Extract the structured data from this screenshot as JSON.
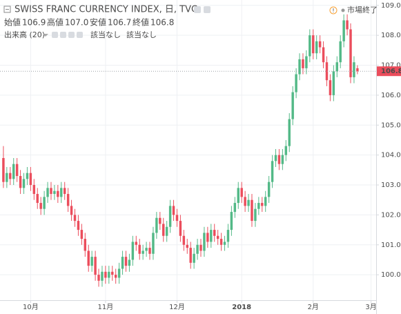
{
  "chart_data": {
    "type": "candlestick",
    "title": "SWISS FRANC CURRENCY INDEX, 日, TVC",
    "ohlc_legend": [
      {
        "label": "始値",
        "value": "106.9"
      },
      {
        "label": "高値",
        "value": "107.0"
      },
      {
        "label": "安値",
        "value": "106.7"
      },
      {
        "label": "終値",
        "value": "106.8"
      }
    ],
    "volume_label": "出来高 (20)",
    "volume_values": [
      "該当なし",
      "該当なし"
    ],
    "market_status": "市場終了",
    "last_price": {
      "value": 106.8,
      "label": "106.8"
    },
    "up_color": "#53b987",
    "down_color": "#eb4d5c",
    "grid": true,
    "xlim": [
      -1,
      109.5
    ],
    "xticks": [
      {
        "value": 8,
        "label": "10月"
      },
      {
        "value": 30,
        "label": "11月"
      },
      {
        "value": 51,
        "label": "12月"
      },
      {
        "value": 70,
        "label": "2018"
      },
      {
        "value": 91,
        "label": "2月"
      },
      {
        "value": 108,
        "label": "3月"
      }
    ],
    "ylim": [
      99.15,
      109.18
    ],
    "yticks": [
      {
        "value": 100,
        "label": "100.0"
      },
      {
        "value": 101,
        "label": "101.0"
      },
      {
        "value": 102,
        "label": "102.0"
      },
      {
        "value": 103,
        "label": "103.0"
      },
      {
        "value": 104,
        "label": "104.0"
      },
      {
        "value": 105,
        "label": "105.0"
      },
      {
        "value": 106,
        "label": "106.0"
      },
      {
        "value": 107,
        "label": "107.0"
      },
      {
        "value": 108,
        "label": "108.0"
      },
      {
        "value": 109,
        "label": "109.0"
      }
    ],
    "open": [
      103.9,
      103.1,
      103.4,
      103.2,
      103.7,
      103.3,
      102.9,
      103.2,
      103.4,
      103.0,
      102.7,
      102.4,
      102.2,
      102.6,
      102.9,
      102.7,
      102.8,
      102.6,
      102.9,
      102.7,
      102.3,
      102.0,
      101.8,
      101.5,
      101.2,
      100.8,
      100.3,
      100.6,
      100.0,
      99.8,
      100.1,
      99.9,
      100.1,
      100.0,
      99.9,
      100.2,
      100.6,
      100.3,
      100.5,
      101.1,
      101.0,
      100.7,
      100.8,
      100.9,
      100.7,
      101.4,
      101.9,
      101.7,
      101.3,
      101.6,
      102.3,
      102.0,
      101.8,
      101.3,
      101.0,
      100.9,
      100.4,
      100.7,
      101.0,
      100.8,
      101.4,
      101.1,
      101.5,
      101.3,
      101.2,
      101.0,
      101.1,
      101.5,
      102.1,
      102.4,
      102.9,
      102.6,
      102.3,
      102.5,
      101.8,
      102.2,
      102.4,
      102.3,
      102.6,
      103.1,
      103.8,
      104.0,
      103.7,
      104.0,
      104.3,
      105.2,
      106.1,
      106.7,
      107.2,
      106.9,
      107.3,
      108.0,
      107.4,
      107.8,
      107.6,
      107.1,
      106.5,
      106.0,
      106.8,
      107.1,
      107.8,
      108.5,
      108.2,
      106.6,
      106.9
    ],
    "high": [
      104.3,
      103.6,
      103.6,
      103.9,
      103.9,
      103.5,
      103.4,
      103.6,
      103.6,
      103.2,
      102.9,
      102.6,
      102.8,
      103.1,
      103.1,
      103.0,
      103.0,
      103.1,
      103.1,
      102.9,
      102.5,
      102.2,
      102.0,
      101.7,
      101.4,
      101.0,
      100.8,
      100.8,
      100.2,
      100.3,
      100.3,
      100.3,
      100.3,
      100.2,
      100.4,
      100.8,
      100.8,
      100.7,
      101.3,
      101.3,
      101.2,
      101.0,
      101.1,
      101.1,
      101.6,
      102.1,
      102.1,
      101.9,
      101.8,
      102.5,
      102.5,
      102.2,
      102.0,
      101.5,
      101.2,
      101.1,
      100.9,
      101.2,
      101.2,
      101.6,
      101.6,
      101.7,
      101.7,
      101.5,
      101.4,
      101.3,
      101.7,
      102.3,
      102.6,
      103.1,
      103.1,
      102.8,
      102.7,
      102.7,
      102.4,
      102.6,
      102.6,
      102.8,
      103.3,
      104.0,
      104.2,
      104.2,
      104.2,
      104.5,
      105.4,
      106.3,
      106.9,
      107.4,
      107.4,
      107.5,
      108.2,
      108.2,
      108.0,
      108.0,
      107.8,
      107.3,
      106.7,
      107.0,
      107.3,
      108.0,
      108.7,
      108.7,
      108.4,
      107.3,
      107.0
    ],
    "low": [
      102.9,
      102.9,
      103.0,
      103.0,
      103.1,
      102.7,
      102.7,
      103.0,
      102.8,
      102.5,
      102.2,
      102.0,
      102.0,
      102.4,
      102.5,
      102.5,
      102.4,
      102.4,
      102.5,
      102.1,
      101.8,
      101.6,
      101.3,
      101.0,
      100.6,
      100.1,
      100.1,
      99.8,
      99.6,
      99.6,
      99.7,
      99.7,
      99.8,
      99.7,
      99.7,
      100.0,
      100.1,
      100.1,
      100.3,
      100.8,
      100.5,
      100.5,
      100.6,
      100.5,
      100.5,
      101.2,
      101.5,
      101.1,
      101.1,
      101.4,
      101.8,
      101.6,
      101.1,
      100.8,
      100.7,
      100.2,
      100.2,
      100.5,
      100.6,
      100.6,
      100.9,
      100.9,
      101.1,
      101.0,
      100.8,
      100.8,
      100.9,
      101.3,
      101.9,
      102.2,
      102.4,
      102.1,
      102.1,
      101.6,
      101.6,
      102.0,
      102.1,
      102.1,
      102.4,
      102.9,
      103.6,
      103.5,
      103.5,
      103.8,
      104.1,
      105.0,
      105.9,
      106.5,
      106.7,
      106.7,
      107.1,
      107.2,
      107.2,
      107.4,
      106.9,
      106.3,
      105.8,
      105.8,
      106.6,
      106.9,
      107.6,
      108.0,
      106.4,
      106.4,
      106.7
    ],
    "close": [
      103.1,
      103.4,
      103.2,
      103.7,
      103.3,
      102.9,
      103.2,
      103.4,
      103.0,
      102.7,
      102.4,
      102.2,
      102.6,
      102.9,
      102.7,
      102.8,
      102.6,
      102.9,
      102.7,
      102.3,
      102.0,
      101.8,
      101.5,
      101.2,
      100.8,
      100.3,
      100.6,
      100.0,
      99.8,
      100.1,
      99.9,
      100.1,
      100.0,
      99.9,
      100.2,
      100.6,
      100.3,
      100.5,
      101.1,
      101.0,
      100.7,
      100.8,
      100.9,
      100.7,
      101.4,
      101.9,
      101.7,
      101.3,
      101.6,
      102.3,
      102.0,
      101.8,
      101.3,
      101.0,
      100.9,
      100.4,
      100.7,
      101.0,
      100.8,
      101.4,
      101.1,
      101.5,
      101.3,
      101.2,
      101.0,
      101.1,
      101.5,
      102.1,
      102.4,
      102.9,
      102.6,
      102.3,
      102.5,
      101.8,
      102.2,
      102.4,
      102.3,
      102.6,
      103.1,
      103.8,
      104.0,
      103.7,
      104.0,
      104.3,
      105.2,
      106.1,
      106.7,
      107.2,
      106.9,
      107.3,
      108.0,
      107.4,
      107.8,
      107.6,
      107.1,
      106.5,
      106.0,
      106.8,
      107.1,
      107.8,
      108.5,
      108.2,
      106.6,
      107.1,
      106.8
    ]
  }
}
